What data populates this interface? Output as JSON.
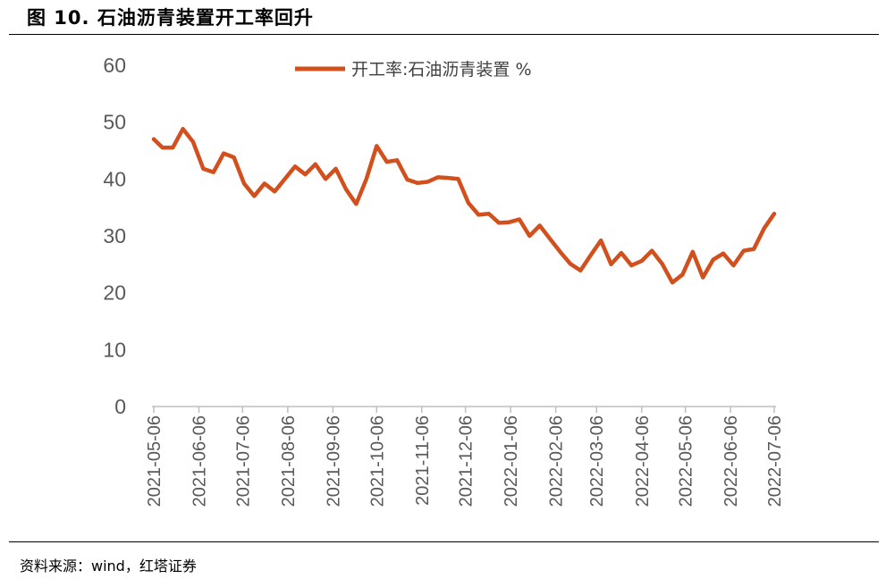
{
  "figure": {
    "title": "图 10. 石油沥青装置开工率回升",
    "source": "资料来源：wind，红塔证券"
  },
  "colors": {
    "series": "#d2501e",
    "axis": "#bfbfbf",
    "tick_text": "#595959"
  },
  "chart_data": {
    "type": "line",
    "title": "",
    "xlabel": "",
    "ylabel": "",
    "ylim": [
      0,
      60
    ],
    "y_ticks": [
      0,
      10,
      20,
      30,
      40,
      50,
      60
    ],
    "x_tick_labels": [
      "2021-05-06",
      "2021-06-06",
      "2021-07-06",
      "2021-08-06",
      "2021-09-06",
      "2021-10-06",
      "2021-11-06",
      "2021-12-06",
      "2022-01-06",
      "2022-02-06",
      "2022-03-06",
      "2022-04-06",
      "2022-05-06",
      "2022-06-06",
      "2022-07-06"
    ],
    "grid": false,
    "legend_position": "top-center",
    "series": [
      {
        "name": "开工率:石油沥青装置 %",
        "x": [
          "2021-05-06",
          "2021-05-12",
          "2021-05-19",
          "2021-05-26",
          "2021-06-02",
          "2021-06-09",
          "2021-06-16",
          "2021-06-23",
          "2021-06-30",
          "2021-07-07",
          "2021-07-14",
          "2021-07-21",
          "2021-07-28",
          "2021-08-04",
          "2021-08-11",
          "2021-08-18",
          "2021-08-25",
          "2021-09-01",
          "2021-09-08",
          "2021-09-15",
          "2021-09-22",
          "2021-09-29",
          "2021-10-06",
          "2021-10-13",
          "2021-10-20",
          "2021-10-27",
          "2021-11-03",
          "2021-11-10",
          "2021-11-17",
          "2021-11-24",
          "2021-12-01",
          "2021-12-08",
          "2021-12-15",
          "2021-12-22",
          "2021-12-29",
          "2022-01-05",
          "2022-01-12",
          "2022-01-19",
          "2022-01-26",
          "2022-02-02",
          "2022-02-09",
          "2022-02-16",
          "2022-02-23",
          "2022-03-02",
          "2022-03-09",
          "2022-03-16",
          "2022-03-23",
          "2022-03-30",
          "2022-04-06",
          "2022-04-13",
          "2022-04-20",
          "2022-04-27",
          "2022-05-04",
          "2022-05-11",
          "2022-05-18",
          "2022-05-25",
          "2022-06-01",
          "2022-06-08",
          "2022-06-15",
          "2022-06-22",
          "2022-06-29",
          "2022-07-06"
        ],
        "values": [
          47.0,
          45.5,
          45.5,
          48.8,
          46.5,
          41.8,
          41.2,
          44.5,
          43.8,
          39.2,
          37.0,
          39.2,
          37.8,
          40.0,
          42.2,
          40.8,
          42.6,
          40.0,
          41.8,
          38.2,
          35.6,
          40.0,
          45.8,
          43.0,
          43.3,
          39.9,
          39.3,
          39.5,
          40.3,
          40.2,
          40.0,
          35.8,
          33.7,
          33.9,
          32.3,
          32.4,
          32.9,
          30.0,
          31.8,
          29.5,
          27.2,
          25.1,
          23.9,
          26.6,
          29.2,
          25.0,
          27.0,
          24.8,
          25.6,
          27.4,
          25.1,
          21.8,
          23.2,
          27.2,
          22.7,
          25.8,
          26.9,
          24.8,
          27.4,
          27.7,
          31.3,
          33.9
        ]
      }
    ]
  }
}
